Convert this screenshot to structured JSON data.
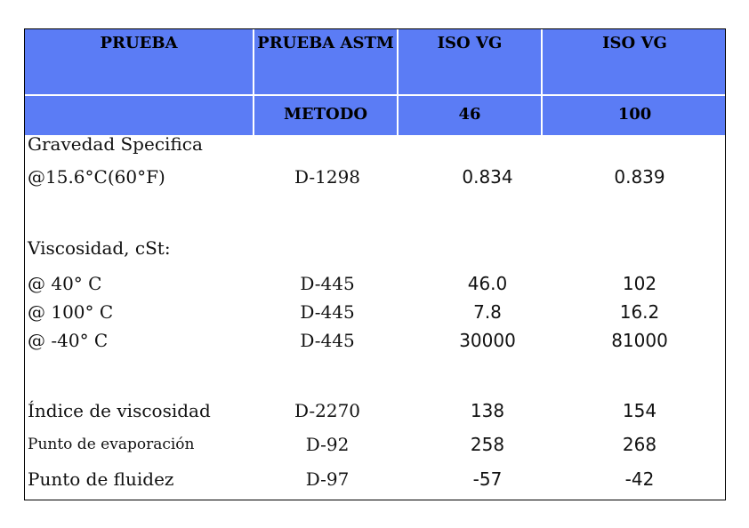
{
  "header": {
    "row1": [
      "PRUEBA",
      "PRUEBA ASTM",
      "ISO VG",
      "ISO VG"
    ],
    "row2": [
      "",
      "METODO",
      "46",
      "100"
    ]
  },
  "rows": [
    {
      "label": "Gravedad Specifica",
      "method": "",
      "vg46": "",
      "vg100": ""
    },
    {
      "label": "@15.6°C(60°F)",
      "method": "D-1298",
      "vg46": "0.834",
      "vg100": "0.839"
    },
    {
      "label": "Viscosidad, cSt:",
      "method": "",
      "vg46": "",
      "vg100": ""
    },
    {
      "label": "@ 40° C",
      "method": "D-445",
      "vg46": "46.0",
      "vg100": "102"
    },
    {
      "label": "@ 100° C",
      "method": "D-445",
      "vg46": "7.8",
      "vg100": "16.2"
    },
    {
      "label": "@ -40° C",
      "method": "D-445",
      "vg46": "30000",
      "vg100": "81000"
    },
    {
      "label": "Índice de viscosidad",
      "method": "D-2270",
      "vg46": "138",
      "vg100": "154"
    },
    {
      "label": "Punto de evaporación",
      "method": "D-92",
      "vg46": "258",
      "vg100": "268"
    },
    {
      "label": "Punto de fluidez",
      "method": "D-97",
      "vg46": "-57",
      "vg100": "-42"
    }
  ]
}
